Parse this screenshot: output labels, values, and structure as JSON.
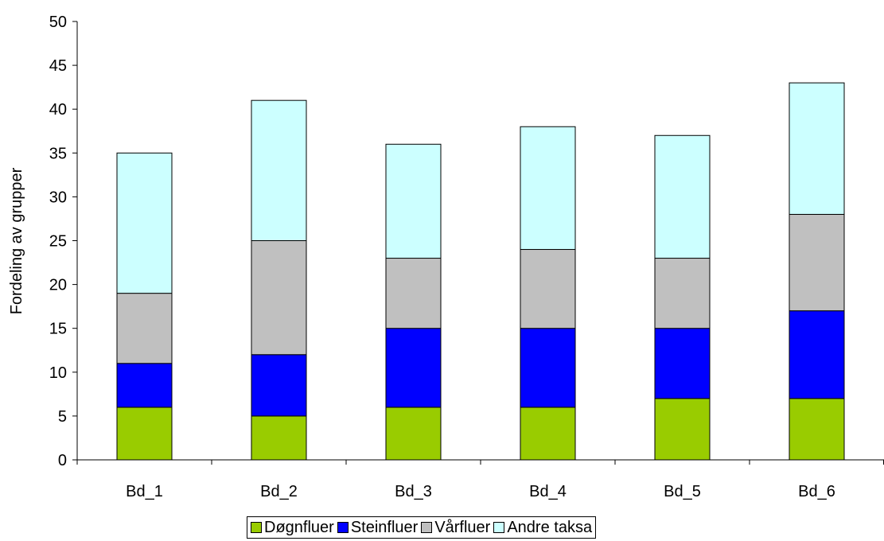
{
  "chart_data": {
    "type": "bar",
    "stacked": true,
    "categories": [
      "Bd_1",
      "Bd_2",
      "Bd_3",
      "Bd_4",
      "Bd_5",
      "Bd_6"
    ],
    "series": [
      {
        "name": "Døgnfluer",
        "color": "#99cc00",
        "values": [
          6,
          5,
          6,
          6,
          7,
          7
        ]
      },
      {
        "name": "Steinfluer",
        "color": "#0000ff",
        "values": [
          5,
          7,
          9,
          9,
          8,
          10
        ]
      },
      {
        "name": "Vårfluer",
        "color": "#c0c0c0",
        "values": [
          8,
          13,
          8,
          9,
          8,
          11
        ]
      },
      {
        "name": "Andre taksa",
        "color": "#ccffff",
        "values": [
          16,
          16,
          13,
          14,
          14,
          15
        ]
      }
    ],
    "title": "",
    "xlabel": "",
    "ylabel": "Fordeling av grupper",
    "ylim": [
      0,
      50
    ],
    "yticks": [
      0,
      5,
      10,
      15,
      20,
      25,
      30,
      35,
      40,
      45,
      50
    ],
    "grid": false,
    "legend_position": "bottom"
  }
}
